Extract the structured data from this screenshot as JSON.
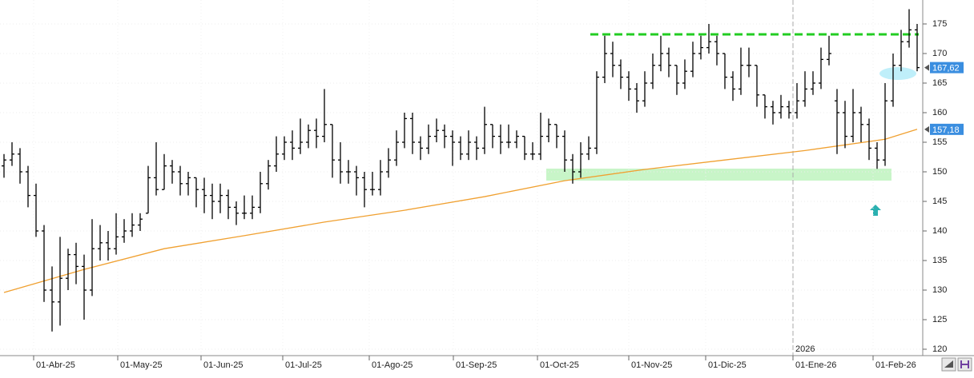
{
  "chart_data": {
    "type": "ohlc",
    "bar_color": "#000000",
    "ylim": [
      118.65,
      179.05
    ],
    "yticks": [
      120,
      125,
      130,
      135,
      140,
      145,
      150,
      155,
      160,
      165,
      170,
      175
    ],
    "xlim": [
      -0.5,
      114.5
    ],
    "xticks": [
      {
        "value": 3.7,
        "label": "01-Abr-25"
      },
      {
        "value": 14.2,
        "label": "01-May-25"
      },
      {
        "value": 24.6,
        "label": "01-Jun-25"
      },
      {
        "value": 34.8,
        "label": "01-Jul-25"
      },
      {
        "value": 45.6,
        "label": "01-Ago-25"
      },
      {
        "value": 56.1,
        "label": "01-Sep-25"
      },
      {
        "value": 66.6,
        "label": "01-Oct-25"
      },
      {
        "value": 78,
        "label": "01-Nov-25"
      },
      {
        "value": 87.6,
        "label": "01-Dic-25"
      },
      {
        "value": 98.5,
        "label": "01-Ene-26"
      },
      {
        "value": 108.5,
        "label": "01-Feb-26"
      }
    ],
    "year_marker": {
      "value": 98.5,
      "label": "2026"
    },
    "ohlc": [
      [
        151,
        153,
        149,
        152
      ],
      [
        152,
        155,
        151,
        153
      ],
      [
        153,
        154,
        148,
        150
      ],
      [
        150,
        151,
        144,
        146
      ],
      [
        146,
        148,
        139,
        140
      ],
      [
        140,
        141,
        128,
        130
      ],
      [
        130,
        134,
        123,
        128
      ],
      [
        128,
        139,
        124,
        132
      ],
      [
        132,
        137,
        130,
        136
      ],
      [
        136,
        138,
        131,
        134
      ],
      [
        134,
        136,
        125,
        130
      ],
      [
        130,
        142,
        129,
        137
      ],
      [
        137,
        141,
        135,
        138
      ],
      [
        138,
        140,
        135,
        137
      ],
      [
        137,
        143,
        136,
        139
      ],
      [
        139,
        142,
        138,
        140
      ],
      [
        140,
        143,
        139,
        141
      ],
      [
        141,
        143,
        140,
        142
      ],
      [
        143,
        151,
        143,
        149
      ],
      [
        149,
        155,
        146,
        147
      ],
      [
        147,
        153,
        147,
        151
      ],
      [
        151,
        152,
        148,
        150
      ],
      [
        150,
        151,
        146,
        148
      ],
      [
        148,
        150,
        146,
        149
      ],
      [
        149,
        149,
        144,
        147
      ],
      [
        147,
        149,
        143,
        146
      ],
      [
        146,
        148,
        142,
        145
      ],
      [
        145,
        148,
        143,
        146
      ],
      [
        146,
        147,
        142,
        144
      ],
      [
        144,
        145,
        141,
        143
      ],
      [
        143,
        146,
        142,
        143
      ],
      [
        143,
        146,
        142,
        144
      ],
      [
        144,
        150,
        143,
        148
      ],
      [
        148,
        152,
        147,
        151
      ],
      [
        151,
        156,
        150,
        153
      ],
      [
        153,
        156,
        152,
        155
      ],
      [
        155,
        157,
        152,
        154
      ],
      [
        154,
        159,
        153,
        155
      ],
      [
        155,
        158,
        154,
        157
      ],
      [
        157,
        159,
        154,
        156
      ],
      [
        156,
        164,
        155,
        158
      ],
      [
        158,
        158,
        149,
        152
      ],
      [
        152,
        155,
        148,
        150
      ],
      [
        150,
        152,
        148,
        150
      ],
      [
        150,
        151,
        146,
        149
      ],
      [
        149,
        150,
        144,
        147
      ],
      [
        147,
        150,
        146,
        147
      ],
      [
        147,
        152,
        146,
        150
      ],
      [
        150,
        154,
        149,
        152
      ],
      [
        152,
        157,
        151,
        155
      ],
      [
        155,
        160,
        154,
        159
      ],
      [
        159,
        160,
        153,
        155
      ],
      [
        155,
        156,
        152,
        154
      ],
      [
        154,
        158,
        153,
        156
      ],
      [
        156,
        159,
        155,
        157
      ],
      [
        157,
        158,
        154,
        156
      ],
      [
        156,
        157,
        151,
        155
      ],
      [
        155,
        156,
        152,
        153
      ],
      [
        153,
        157,
        152,
        155
      ],
      [
        155,
        156,
        152,
        154
      ],
      [
        154,
        161,
        153,
        158
      ],
      [
        158,
        158,
        154,
        156
      ],
      [
        156,
        158,
        153,
        155
      ],
      [
        155,
        158,
        154,
        155
      ],
      [
        155,
        157,
        154,
        156
      ],
      [
        156,
        156,
        152,
        153
      ],
      [
        153,
        155,
        152,
        153
      ],
      [
        153,
        160,
        152,
        156
      ],
      [
        156,
        159,
        155,
        158
      ],
      [
        158,
        158,
        154,
        156
      ],
      [
        156,
        157,
        150,
        152
      ],
      [
        152,
        153,
        148,
        150
      ],
      [
        150,
        155,
        149,
        153
      ],
      [
        153,
        156,
        152,
        154
      ],
      [
        154,
        167,
        153,
        166
      ],
      [
        166,
        173,
        165,
        170
      ],
      [
        170,
        172,
        166,
        168
      ],
      [
        168,
        169,
        164,
        166
      ],
      [
        166,
        167,
        162,
        164
      ],
      [
        164,
        165,
        160,
        162
      ],
      [
        162,
        167,
        161,
        165
      ],
      [
        165,
        170,
        164,
        168
      ],
      [
        168,
        173,
        167,
        170
      ],
      [
        170,
        171,
        166,
        168
      ],
      [
        168,
        168,
        163,
        165
      ],
      [
        165,
        169,
        164,
        167
      ],
      [
        167,
        172,
        166,
        170
      ],
      [
        170,
        173,
        169,
        171
      ],
      [
        171,
        175,
        170,
        172
      ],
      [
        172,
        173,
        168,
        170
      ],
      [
        170,
        170,
        164,
        166
      ],
      [
        166,
        167,
        162,
        164
      ],
      [
        164,
        171,
        163,
        168
      ],
      [
        168,
        171,
        166,
        168
      ],
      [
        168,
        168,
        161,
        163
      ],
      [
        163,
        163,
        159,
        161
      ],
      [
        161,
        162,
        158,
        160
      ],
      [
        160,
        163,
        159,
        161
      ],
      [
        161,
        162,
        159,
        160
      ],
      [
        160,
        165,
        159,
        162
      ],
      [
        162,
        167,
        161,
        164
      ],
      [
        164,
        167,
        163,
        165
      ],
      [
        165,
        171,
        164,
        169
      ],
      [
        169,
        173,
        168,
        170
      ],
      [
        162,
        164,
        153,
        160
      ],
      [
        160,
        162,
        154,
        156
      ],
      [
        156,
        164,
        155,
        160
      ],
      [
        160,
        161,
        155,
        158
      ],
      [
        158,
        159,
        152,
        154
      ],
      [
        154,
        155,
        150.5,
        152
      ],
      [
        152,
        165,
        151,
        162
      ],
      [
        162,
        170,
        161,
        168
      ],
      [
        168,
        174,
        167,
        172
      ],
      [
        172,
        177.5,
        171,
        174
      ],
      [
        174,
        175,
        167,
        167.62
      ]
    ],
    "overlay": {
      "color": "#f0a030",
      "x": [
        0,
        10,
        20,
        30,
        40,
        50,
        60,
        70,
        80,
        90,
        100,
        110,
        114
      ],
      "values": [
        129.6,
        133.5,
        137,
        139.2,
        141.5,
        143.5,
        145.8,
        148.5,
        150.4,
        152,
        153.6,
        155.5,
        157.2
      ]
    },
    "price_labels": [
      {
        "value": 167.62,
        "label": "167,62",
        "color": "#3a8ee0"
      },
      {
        "value": 157.18,
        "label": "157,18",
        "color": "#3a8ee0"
      }
    ]
  }
}
